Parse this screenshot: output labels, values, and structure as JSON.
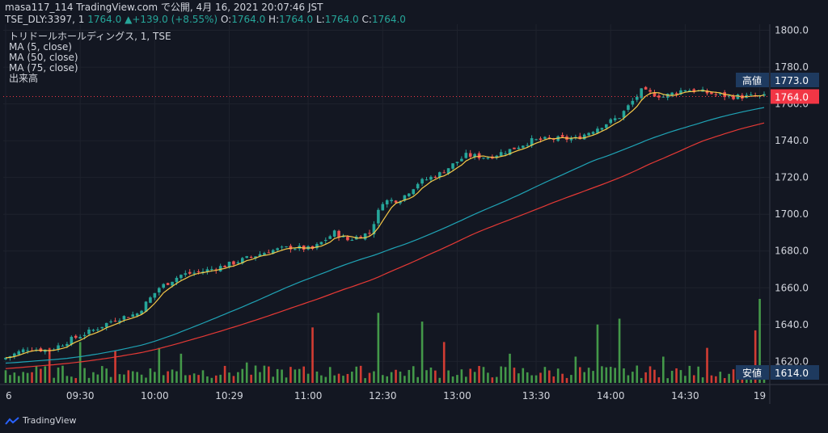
{
  "header": {
    "line1": "masa117_114 TradingView.com で公開, 4月 16, 2021 20:07:46 JST",
    "symbol": "TSE_DLY:3397, 1",
    "last_value": "1764.0",
    "change_value": "+139.0 (+8.55%)",
    "o_label": "O:",
    "o_value": "1764.0",
    "h_label": "H:",
    "h_value": "1764.0",
    "l_label": "L:",
    "l_value": "1764.0",
    "c_label": "C:",
    "c_value": "1764.0"
  },
  "legend": {
    "title": "トリドールホールディングス, 1, TSE",
    "ma5": "MA (5, close)",
    "ma50": "MA (50, close)",
    "ma75": "MA (75, close)",
    "volume": "出来高"
  },
  "footer": {
    "brand": "TradingView"
  },
  "colors": {
    "up": "#26a69a",
    "down": "#ef5350",
    "vol_up": "#4caf50",
    "vol_down": "#f44336",
    "ma5": "#f7c948",
    "ma50": "#1fa3b5",
    "ma75": "#e53935",
    "grid": "#1e222d",
    "bg": "#131722",
    "badge": "#1e3a5f",
    "last": "#f23645"
  },
  "chart_data": {
    "type": "candlestick",
    "title": "トリドールホールディングス, 1, TSE",
    "y_range": [
      1612,
      1806
    ],
    "y_ticks": [
      "1620.0",
      "1640.0",
      "1660.0",
      "1680.0",
      "1700.0",
      "1720.0",
      "1740.0",
      "1760.0",
      "1780.0",
      "1800.0"
    ],
    "x_ticks": [
      {
        "label": "6",
        "slot": 0
      },
      {
        "label": "09:30",
        "slot": 17
      },
      {
        "label": "10:00",
        "slot": 34
      },
      {
        "label": "10:29",
        "slot": 51
      },
      {
        "label": "11:00",
        "slot": 69
      },
      {
        "label": "12:30",
        "slot": 86
      },
      {
        "label": "13:00",
        "slot": 103
      },
      {
        "label": "13:30",
        "slot": 121
      },
      {
        "label": "14:00",
        "slot": 138
      },
      {
        "label": "14:30",
        "slot": 155
      },
      {
        "label": "19",
        "slot": 172
      }
    ],
    "n_slots": 174,
    "high_label": "高値",
    "high_value": "1773.0",
    "low_label": "安値",
    "low_value": "1614.0",
    "last_value": "1764.0",
    "anchors": [
      [
        0,
        1622
      ],
      [
        5,
        1627
      ],
      [
        10,
        1626
      ],
      [
        15,
        1632
      ],
      [
        20,
        1637
      ],
      [
        25,
        1643
      ],
      [
        30,
        1646
      ],
      [
        35,
        1660
      ],
      [
        40,
        1667
      ],
      [
        45,
        1669
      ],
      [
        50,
        1672
      ],
      [
        55,
        1676
      ],
      [
        60,
        1680
      ],
      [
        65,
        1682
      ],
      [
        70,
        1681
      ],
      [
        75,
        1690
      ],
      [
        78,
        1686
      ],
      [
        83,
        1690
      ],
      [
        86,
        1707
      ],
      [
        90,
        1708
      ],
      [
        94,
        1717
      ],
      [
        99,
        1722
      ],
      [
        105,
        1732
      ],
      [
        110,
        1731
      ],
      [
        115,
        1735
      ],
      [
        120,
        1740
      ],
      [
        125,
        1741
      ],
      [
        130,
        1741
      ],
      [
        135,
        1747
      ],
      [
        140,
        1753
      ],
      [
        145,
        1767
      ],
      [
        150,
        1764
      ],
      [
        155,
        1768
      ],
      [
        160,
        1766
      ],
      [
        165,
        1764
      ],
      [
        170,
        1764
      ],
      [
        173,
        1764
      ]
    ],
    "vol_range": [
      0,
      260
    ],
    "volume_spikes": [
      [
        10,
        60
      ],
      [
        17,
        70
      ],
      [
        25,
        55
      ],
      [
        35,
        60
      ],
      [
        40,
        50
      ],
      [
        55,
        35
      ],
      [
        70,
        95
      ],
      [
        85,
        120
      ],
      [
        95,
        105
      ],
      [
        100,
        70
      ],
      [
        115,
        50
      ],
      [
        130,
        45
      ],
      [
        135,
        100
      ],
      [
        140,
        110
      ],
      [
        150,
        45
      ],
      [
        160,
        60
      ],
      [
        171,
        90
      ],
      [
        172,
        170
      ]
    ]
  }
}
